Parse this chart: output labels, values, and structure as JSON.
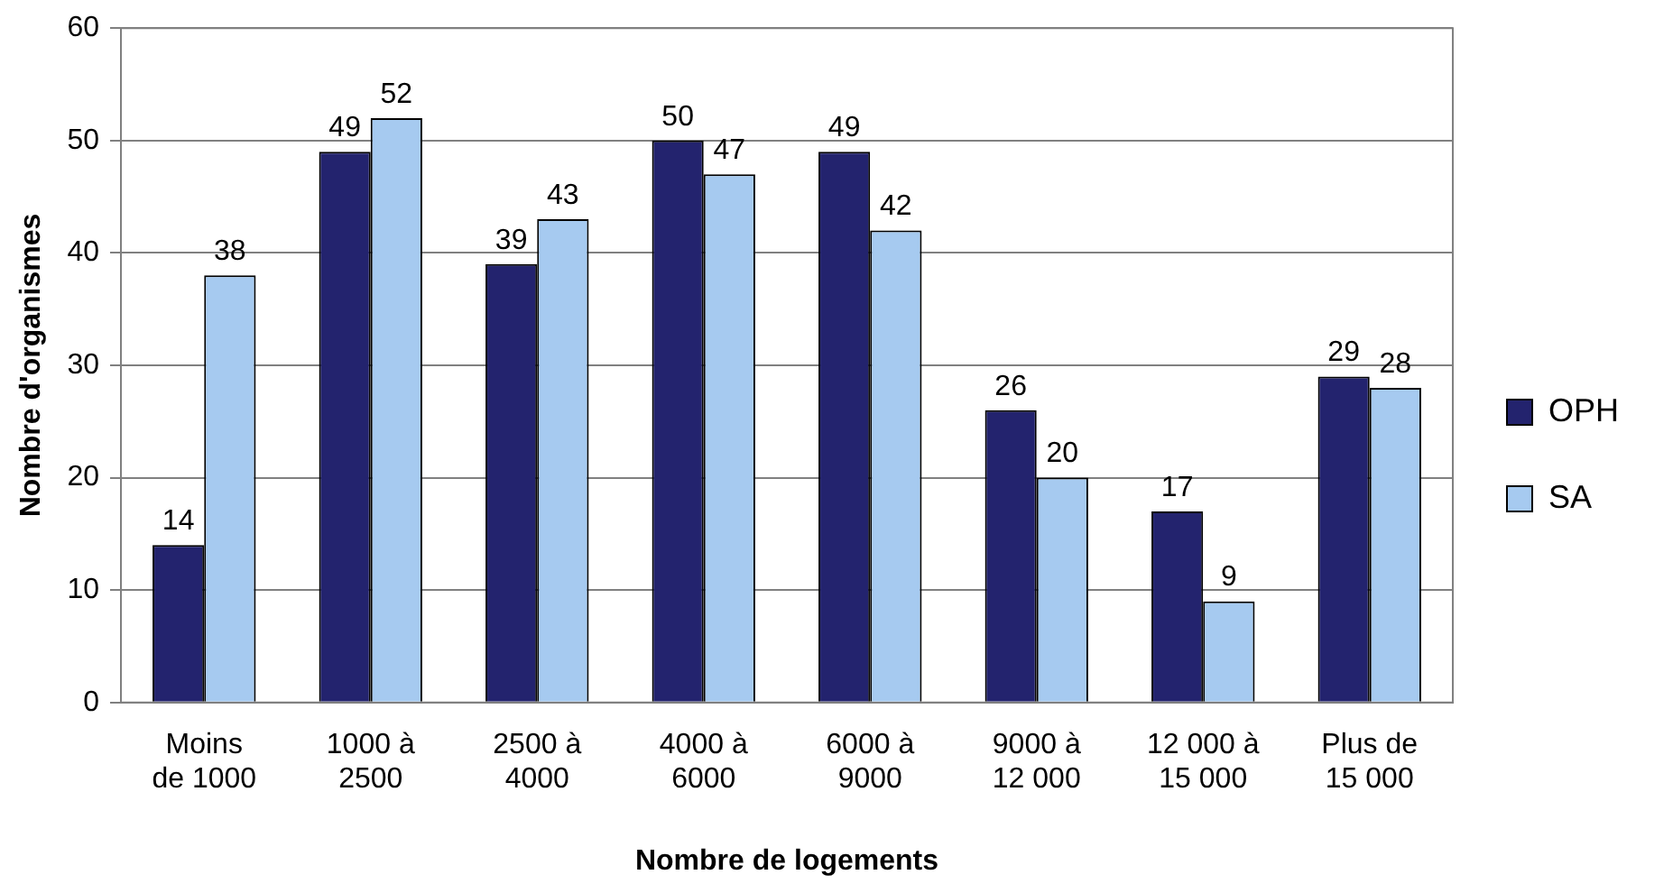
{
  "chart_data": {
    "type": "bar",
    "xlabel": "Nombre de logements",
    "ylabel": "Nombre d'organismes",
    "categories": [
      "Moins de 1000",
      "1000 à 2500",
      "2500 à 4000",
      "4000 à 6000",
      "6000 à 9000",
      "9000 à 12 000",
      "12 000 à 15 000",
      "Plus de 15 000"
    ],
    "series": [
      {
        "name": "OPH",
        "color": "#23236e",
        "values": [
          14,
          49,
          39,
          50,
          49,
          26,
          17,
          29
        ]
      },
      {
        "name": "SA",
        "color": "#a6caf0",
        "values": [
          38,
          52,
          43,
          47,
          42,
          20,
          9,
          28
        ]
      }
    ],
    "ylim": [
      0,
      60
    ],
    "yticks": [
      0,
      10,
      20,
      30,
      40,
      50,
      60
    ],
    "grid": "y",
    "legend": "right",
    "data_labels": true
  }
}
